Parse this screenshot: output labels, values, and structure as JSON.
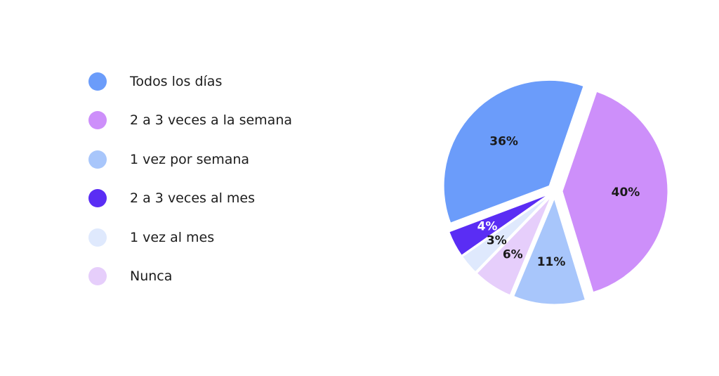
{
  "chart_data": {
    "type": "pie",
    "slices": [
      {
        "label": "Todos los días",
        "value": 36,
        "display": "36%",
        "color": "#6b9cfa",
        "text_color": "#1a1a1a"
      },
      {
        "label": "2 a 3 veces a la semana",
        "value": 40,
        "display": "40%",
        "color": "#cd8ffa",
        "text_color": "#1a1a1a"
      },
      {
        "label": "1 vez por semana",
        "value": 11,
        "display": "11%",
        "color": "#a8c6fb",
        "text_color": "#1a1a1a"
      },
      {
        "label": "2 a 3 veces al mes",
        "value": 4,
        "display": "4%",
        "color": "#5a2df4",
        "text_color": "#ffffff"
      },
      {
        "label": "1 vez al mes",
        "value": 3,
        "display": "3%",
        "color": "#dfe9fd",
        "text_color": "#1a1a1a"
      },
      {
        "label": "Nunca",
        "value": 6,
        "display": "6%",
        "color": "#e6cefb",
        "text_color": "#1a1a1a"
      }
    ],
    "legend_order": [
      "Todos los días",
      "2 a 3 veces a la semana",
      "1 vez por semana",
      "2 a 3 veces al mes",
      "1 vez al mes",
      "Nunca"
    ],
    "legend_position": "left",
    "exploded": true
  }
}
